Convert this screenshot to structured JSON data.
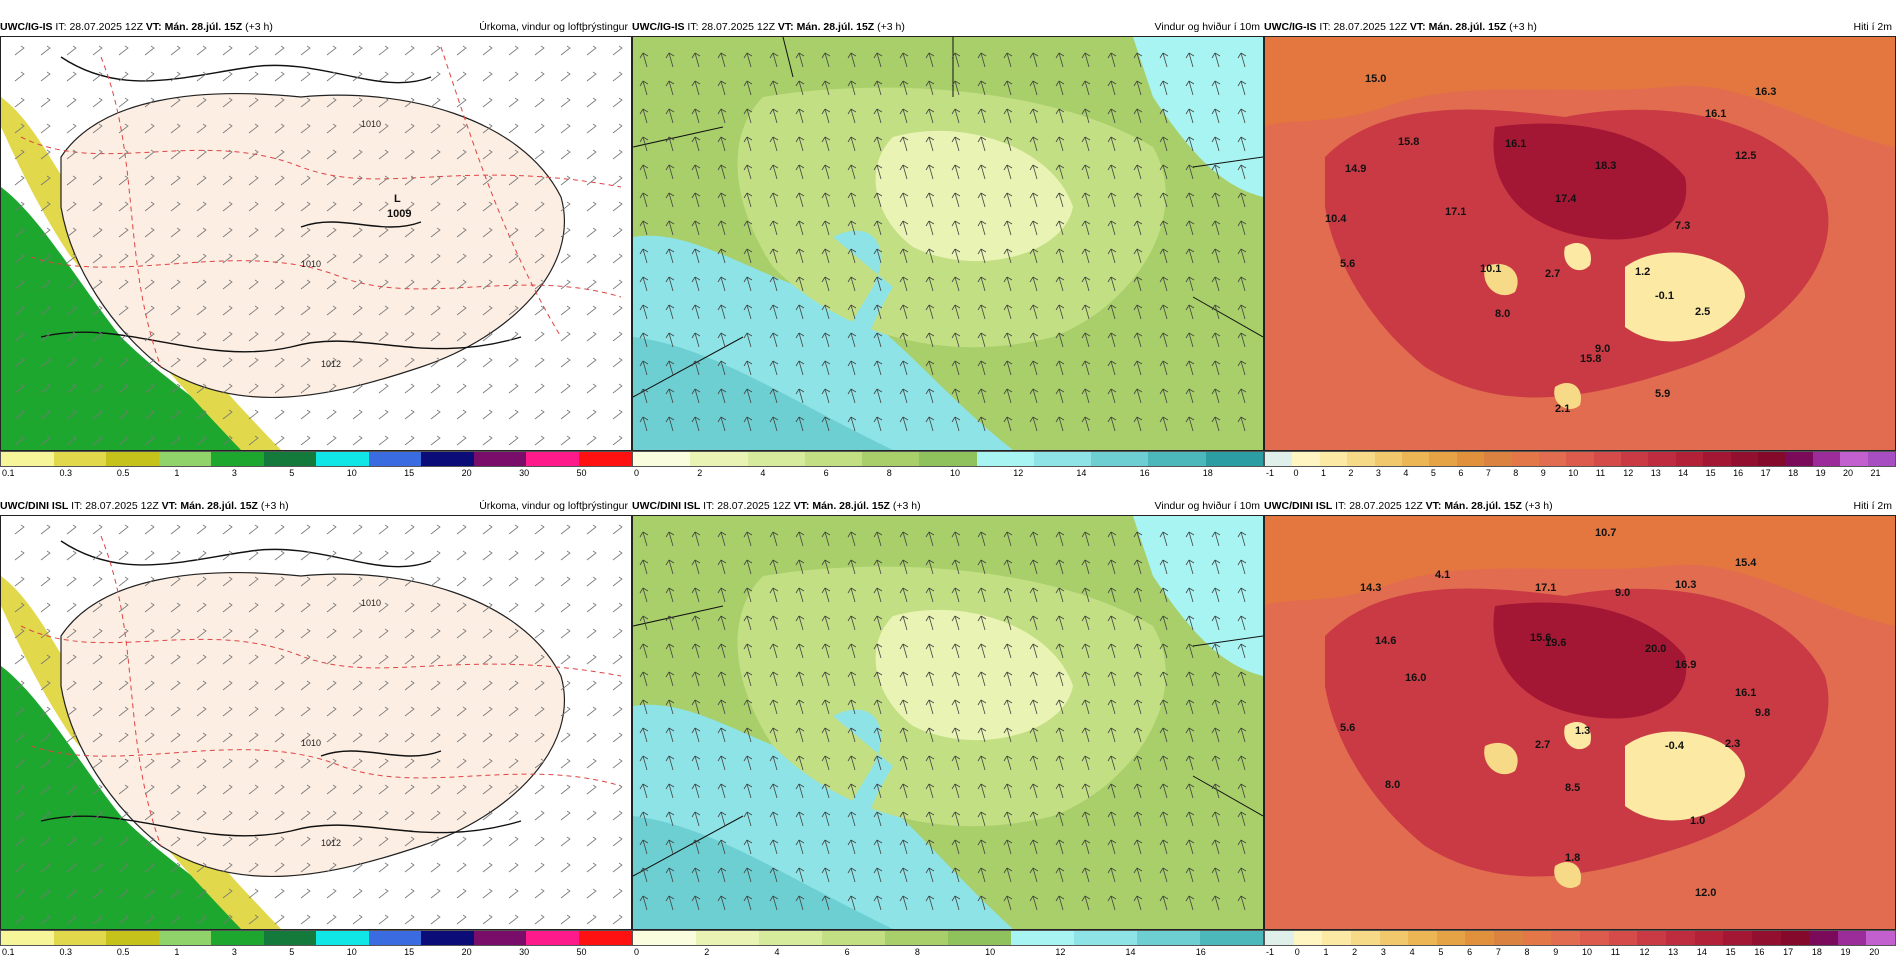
{
  "common": {
    "it_label": "IT:",
    "it": "28.07.2025 12Z",
    "vt_label": "VT:",
    "vt": "Mán. 28.júl. 15Z",
    "lead": "(+3 h)"
  },
  "rows": [
    {
      "model": "UWC/IG-IS",
      "panels": [
        {
          "field": "Úrkoma, vindur og loftþrýstingur",
          "scale": [
            "0.1",
            "0.3",
            "0.5",
            "1",
            "3",
            "5",
            "10",
            "15",
            "20",
            "30",
            "50"
          ],
          "labels": {
            "low_letter": "L",
            "low_value": "1009",
            "p1": "1010",
            "p2": "1010",
            "p3": "1012"
          }
        },
        {
          "field": "Vindur og hviður í 10m",
          "scale": [
            "0",
            "2",
            "4",
            "6",
            "8",
            "10",
            "12",
            "14",
            "16",
            "18"
          ]
        },
        {
          "field": "Hiti í 2m",
          "scale": [
            "-1",
            "0",
            "1",
            "2",
            "3",
            "4",
            "5",
            "6",
            "7",
            "8",
            "9",
            "10",
            "11",
            "12",
            "13",
            "14",
            "15",
            "16",
            "17",
            "18",
            "19",
            "20",
            "21"
          ],
          "temps": [
            "15.0",
            "16.3",
            "16.1",
            "15.8",
            "16.1",
            "12.5",
            "14.9",
            "18.3",
            "10.4",
            "17.4",
            "17.1",
            "7.3",
            "5.6",
            "10.1",
            "2.7",
            "1.2",
            "-0.1",
            "2.5",
            "8.0",
            "9.0",
            "15.8",
            "5.9",
            "2.1"
          ]
        }
      ]
    },
    {
      "model": "UWC/DINI ISL",
      "panels": [
        {
          "field": "Úrkoma, vindur og loftþrýstingur",
          "scale": [
            "0.1",
            "0.3",
            "0.5",
            "1",
            "3",
            "5",
            "10",
            "15",
            "20",
            "30",
            "50"
          ],
          "labels": {
            "p1": "1010",
            "p2": "1010",
            "p3": "1012"
          }
        },
        {
          "field": "Vindur og hviður í 10m",
          "scale": [
            "0",
            "2",
            "4",
            "6",
            "8",
            "10",
            "12",
            "14",
            "16"
          ]
        },
        {
          "field": "Hiti í 2m",
          "scale": [
            "-1",
            "0",
            "1",
            "2",
            "3",
            "4",
            "5",
            "6",
            "7",
            "8",
            "9",
            "10",
            "11",
            "12",
            "13",
            "14",
            "15",
            "16",
            "17",
            "18",
            "19",
            "20"
          ],
          "temps": [
            "10.7",
            "15.4",
            "4.1",
            "14.3",
            "17.1",
            "9.0",
            "10.3",
            "15.6",
            "14.6",
            "19.6",
            "20.0",
            "16.9",
            "16.0",
            "16.1",
            "9.8",
            "5.6",
            "2.7",
            "1.3",
            "-0.4",
            "2.3",
            "8.0",
            "8.5",
            "1.0",
            "1.8",
            "12.0"
          ]
        }
      ]
    }
  ],
  "colors": {
    "precip": [
      "#f7f59a",
      "#e2d84b",
      "#c6c21c",
      "#8fd36a",
      "#1ea72f",
      "#137a3b",
      "#11e6e6",
      "#3a6be0",
      "#0c0c78",
      "#7a0c6a",
      "#ff1a8c",
      "#ff1111"
    ],
    "wind": [
      "#fbfddf",
      "#e9f3b4",
      "#d6eb9b",
      "#c3df84",
      "#a8cf69",
      "#8fc25c",
      "#a8f4f2",
      "#8ee3e6",
      "#6ecfd2",
      "#4db8bc",
      "#2c9ea3",
      "#c4b6ef",
      "#a992e8"
    ],
    "temp": [
      "#dff0ea",
      "#fff5c2",
      "#fbe9a4",
      "#f6da87",
      "#f1c96c",
      "#ecb655",
      "#e6a345",
      "#e1903c",
      "#dc8240",
      "#e37748",
      "#e26c4f",
      "#dc5b4d",
      "#d54b4a",
      "#ca3a45",
      "#bf2b3f",
      "#b32139",
      "#a41734",
      "#930f2f",
      "#84092b",
      "#7b0a5b",
      "#9d2c9b",
      "#c360d0",
      "#a84ec3"
    ]
  },
  "icons": {
    "low_pressure": "L"
  }
}
